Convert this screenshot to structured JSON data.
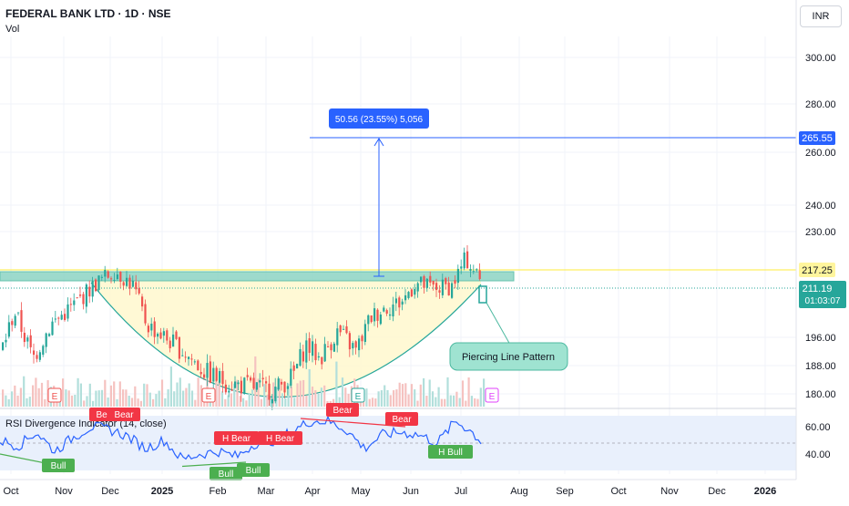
{
  "header": {
    "title": "FEDERAL BANK LTD · 1D · NSE",
    "volume_label": "Vol"
  },
  "currency_button": "INR",
  "price_axis": {
    "ticks": [
      "300.00",
      "280.00",
      "260.00",
      "240.00",
      "230.00",
      "196.00",
      "188.00",
      "180.00"
    ]
  },
  "x_axis": {
    "ticks": [
      "Oct",
      "Nov",
      "Dec",
      "2025",
      "Feb",
      "Mar",
      "Apr",
      "May",
      "Jun",
      "Jul",
      "Aug",
      "Sep",
      "Oct",
      "Nov",
      "Dec",
      "2026"
    ]
  },
  "price_labels": {
    "target": "265.55",
    "resistance": "217.25",
    "current": "211.19",
    "countdown": "01:03:07"
  },
  "measure_label": "50.56 (23.55%) 5,056",
  "pattern_callout": "Piercing Line Pattern",
  "earnings_markers": [
    "E",
    "E",
    "E",
    "E"
  ],
  "rsi_panel": {
    "title": "RSI Divergence Indicator (14, close)",
    "ticks": [
      "60.00",
      "40.00"
    ],
    "labels": [
      "Bear",
      "Bear",
      "H Bear",
      "H Bear",
      "Bear",
      "Bear",
      "Bull",
      "Bull",
      "Bull",
      "H Bull"
    ]
  },
  "colors": {
    "up": "#26a69a",
    "down": "#ef5350",
    "rsi_line": "#2962ff",
    "resistance": "#ffeb3b",
    "target": "#2962ff",
    "bear": "#f23645",
    "bull": "#4caf50",
    "cup_fill": "#fff8d0",
    "box": "#8dd4c4"
  },
  "chart_data": {
    "type": "candlestick",
    "symbol": "FEDERAL BANK LTD",
    "interval": "1D",
    "exchange": "NSE",
    "currency": "INR",
    "current_price": 211.19,
    "resistance": 217.25,
    "target": 265.55,
    "measured_move": {
      "points": 50.56,
      "percent": 23.55
    },
    "annotation": "Piercing Line Pattern",
    "price_series": [
      {
        "month": "Oct",
        "close": 196
      },
      {
        "month": "Nov",
        "close": 205
      },
      {
        "month": "Dec",
        "close": 213
      },
      {
        "month": "2025",
        "close": 195
      },
      {
        "month": "Feb",
        "close": 184
      },
      {
        "month": "Mar",
        "close": 181
      },
      {
        "month": "Apr",
        "close": 189
      },
      {
        "month": "May",
        "close": 201
      },
      {
        "month": "Jun",
        "close": 214
      },
      {
        "month": "Jul",
        "close": 217
      }
    ]
  }
}
